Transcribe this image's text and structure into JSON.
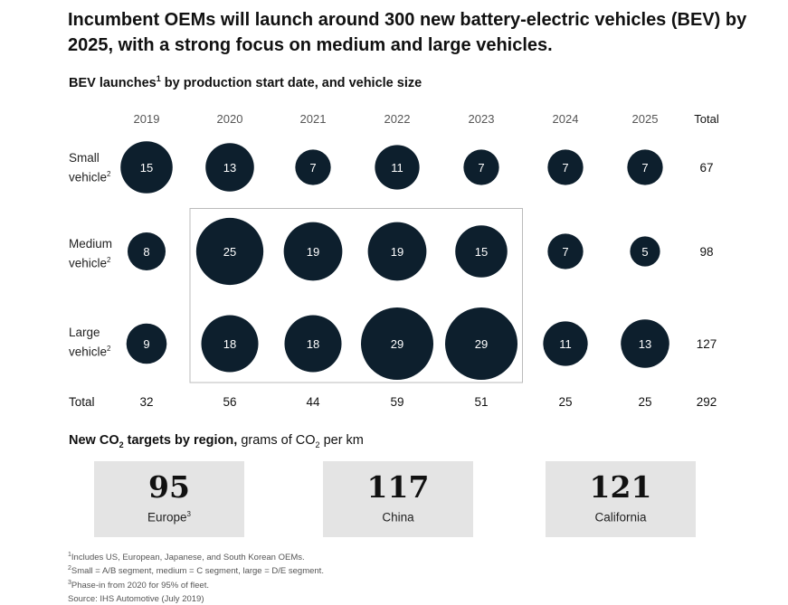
{
  "headline": "Incumbent OEMs will launch around 300 new battery-electric vehicles (BEV) by 2025, with a strong focus on medium and large vehicles.",
  "subtitle": {
    "text": "BEV launches",
    "sup": "1",
    "rest": " by production start date, and vehicle size"
  },
  "chart_data": {
    "type": "bubble-matrix",
    "columns": [
      "2019",
      "2020",
      "2021",
      "2022",
      "2023",
      "2024",
      "2025"
    ],
    "total_label": "Total",
    "rows": [
      {
        "label_line1": "Small",
        "label_line2": "vehicle",
        "sup": "2",
        "values": [
          15,
          13,
          7,
          11,
          7,
          7,
          7
        ],
        "total": "67"
      },
      {
        "label_line1": "Medium",
        "label_line2": "vehicle",
        "sup": "2",
        "values": [
          8,
          25,
          19,
          19,
          15,
          7,
          5
        ],
        "total": "98"
      },
      {
        "label_line1": "Large",
        "label_line2": "vehicle",
        "sup": "2",
        "values": [
          9,
          18,
          18,
          29,
          29,
          11,
          13
        ],
        "total": "127"
      }
    ],
    "column_totals": [
      "32",
      "56",
      "44",
      "59",
      "51",
      "25",
      "25"
    ],
    "grand_total": "292",
    "highlight": {
      "from_column": "2020",
      "to_column": "2023",
      "rows": [
        "Medium",
        "Large"
      ]
    },
    "bubble_color": "#0d1f2d",
    "highlight_border_color": "#bbbbbb"
  },
  "co2": {
    "title_bold": "New CO",
    "title_bold_sub": "2",
    "title_bold_rest": " targets by region,",
    "title_rest": " grams of CO",
    "title_rest_sub": "2",
    "title_rest_end": " per km",
    "cards": [
      {
        "value": "95",
        "region": "Europe",
        "sup": "3"
      },
      {
        "value": "117",
        "region": "China",
        "sup": ""
      },
      {
        "value": "121",
        "region": "California",
        "sup": ""
      }
    ]
  },
  "footnotes": [
    {
      "sup": "1",
      "text": "Includes US, European, Japanese, and South Korean OEMs."
    },
    {
      "sup": "2",
      "text": "Small = A/B segment, medium = C segment, large = D/E segment."
    },
    {
      "sup": "3",
      "text": "Phase-in from 2020 for 95% of fleet."
    },
    {
      "sup": "",
      "text": "Source: IHS Automotive (July 2019)"
    }
  ]
}
